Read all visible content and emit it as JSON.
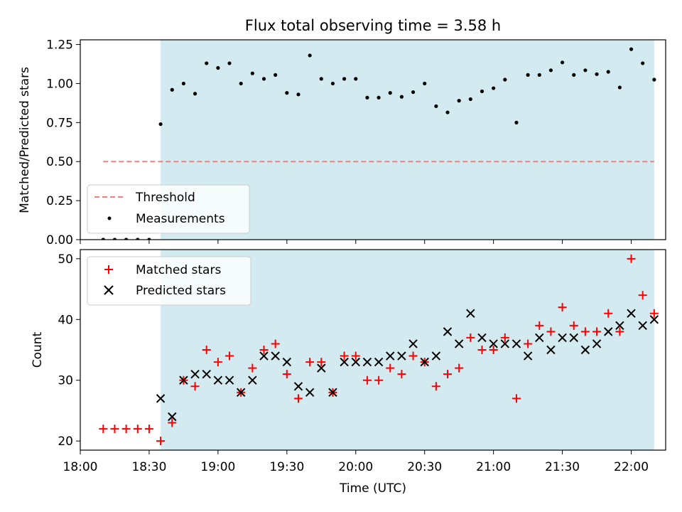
{
  "chart_data": [
    {
      "type": "scatter",
      "title": "Flux total observing time = 3.58 h",
      "ylabel": "Matched/Predicted stars",
      "ylim": [
        0,
        1.28
      ],
      "yticks": [
        0,
        0.25,
        0.5,
        0.75,
        1.0,
        1.25
      ],
      "ytick_labels": [
        "0.00",
        "0.25",
        "0.50",
        "0.75",
        "1.00",
        "1.25"
      ],
      "shaded_x_range": [
        "18:35",
        "22:10"
      ],
      "shade_color": "#d3eaf0",
      "threshold": {
        "name": "Threshold",
        "y": 0.5,
        "x_range": [
          "18:10",
          "22:10"
        ],
        "color": "#f08080",
        "style": "dashed"
      },
      "legend": {
        "placement": "lower-left",
        "entries": [
          "Threshold",
          "Measurements"
        ]
      },
      "series": [
        {
          "name": "Measurements",
          "marker": "dot",
          "color": "#000000",
          "x": [
            "18:10",
            "18:15",
            "18:20",
            "18:25",
            "18:30",
            "18:35",
            "18:40",
            "18:45",
            "18:50",
            "18:55",
            "19:00",
            "19:05",
            "19:10",
            "19:15",
            "19:20",
            "19:25",
            "19:30",
            "19:35",
            "19:40",
            "19:45",
            "19:50",
            "19:55",
            "20:00",
            "20:05",
            "20:10",
            "20:15",
            "20:20",
            "20:25",
            "20:30",
            "20:35",
            "20:40",
            "20:45",
            "20:50",
            "20:55",
            "21:00",
            "21:05",
            "21:10",
            "21:15",
            "21:20",
            "21:25",
            "21:30",
            "21:35",
            "21:40",
            "21:45",
            "21:50",
            "21:55",
            "22:00",
            "22:05",
            "22:10"
          ],
          "y": [
            0,
            0,
            0,
            0,
            0,
            0.74,
            0.96,
            1.0,
            0.935,
            1.13,
            1.1,
            1.13,
            1.0,
            1.065,
            1.03,
            1.055,
            0.94,
            0.93,
            1.18,
            1.03,
            1.0,
            1.03,
            1.03,
            0.91,
            0.91,
            0.94,
            0.915,
            0.945,
            1.0,
            0.855,
            0.815,
            0.89,
            0.9,
            0.95,
            0.97,
            1.025,
            0.75,
            1.055,
            1.055,
            1.085,
            1.135,
            1.055,
            1.085,
            1.06,
            1.075,
            0.975,
            1.22,
            1.13,
            1.025
          ]
        }
      ]
    },
    {
      "type": "scatter",
      "xlabel": "Time (UTC)",
      "ylabel": "Count",
      "ylim": [
        18.5,
        51.5
      ],
      "yticks": [
        20,
        30,
        40,
        50
      ],
      "ytick_labels": [
        "20",
        "30",
        "40",
        "50"
      ],
      "xlim": [
        "18:00",
        "22:15"
      ],
      "xticks": [
        "18:00",
        "18:30",
        "19:00",
        "19:30",
        "20:00",
        "20:30",
        "21:00",
        "21:30",
        "22:00"
      ],
      "shaded_x_range": [
        "18:35",
        "22:10"
      ],
      "shade_color": "#d3eaf0",
      "legend": {
        "placement": "upper-left",
        "entries": [
          "Matched stars",
          "Predicted stars"
        ]
      },
      "series": [
        {
          "name": "Matched stars",
          "marker": "plus",
          "color": "#ff0000",
          "x": [
            "18:10",
            "18:15",
            "18:20",
            "18:25",
            "18:30",
            "18:35",
            "18:40",
            "18:45",
            "18:50",
            "18:55",
            "19:00",
            "19:05",
            "19:10",
            "19:15",
            "19:20",
            "19:25",
            "19:30",
            "19:35",
            "19:40",
            "19:45",
            "19:50",
            "19:55",
            "20:00",
            "20:05",
            "20:10",
            "20:15",
            "20:20",
            "20:25",
            "20:30",
            "20:35",
            "20:40",
            "20:45",
            "20:50",
            "20:55",
            "21:00",
            "21:05",
            "21:10",
            "21:15",
            "21:20",
            "21:25",
            "21:30",
            "21:35",
            "21:40",
            "21:45",
            "21:50",
            "21:55",
            "22:00",
            "22:05",
            "22:10"
          ],
          "y": [
            22,
            22,
            22,
            22,
            22,
            20,
            23,
            30,
            29,
            35,
            33,
            34,
            28,
            32,
            35,
            36,
            31,
            27,
            33,
            33,
            28,
            34,
            34,
            30,
            30,
            32,
            31,
            34,
            33,
            29,
            31,
            32,
            37,
            35,
            35,
            37,
            27,
            36,
            39,
            38,
            42,
            39,
            38,
            38,
            41,
            38,
            50,
            44,
            41
          ]
        },
        {
          "name": "Predicted stars",
          "marker": "x",
          "color": "#000000",
          "x": [
            "18:35",
            "18:40",
            "18:45",
            "18:50",
            "18:55",
            "19:00",
            "19:05",
            "19:10",
            "19:15",
            "19:20",
            "19:25",
            "19:30",
            "19:35",
            "19:40",
            "19:45",
            "19:50",
            "19:55",
            "20:00",
            "20:05",
            "20:10",
            "20:15",
            "20:20",
            "20:25",
            "20:30",
            "20:35",
            "20:40",
            "20:45",
            "20:50",
            "20:55",
            "21:00",
            "21:05",
            "21:10",
            "21:15",
            "21:20",
            "21:25",
            "21:30",
            "21:35",
            "21:40",
            "21:45",
            "21:50",
            "21:55",
            "22:00",
            "22:05",
            "22:10"
          ],
          "y": [
            27,
            24,
            30,
            31,
            31,
            30,
            30,
            28,
            30,
            34,
            34,
            33,
            29,
            28,
            32,
            28,
            33,
            33,
            33,
            33,
            34,
            34,
            36,
            33,
            34,
            38,
            36,
            41,
            37,
            36,
            36,
            36,
            34,
            37,
            35,
            37,
            37,
            35,
            36,
            38,
            39,
            41,
            39,
            40
          ]
        }
      ]
    }
  ]
}
